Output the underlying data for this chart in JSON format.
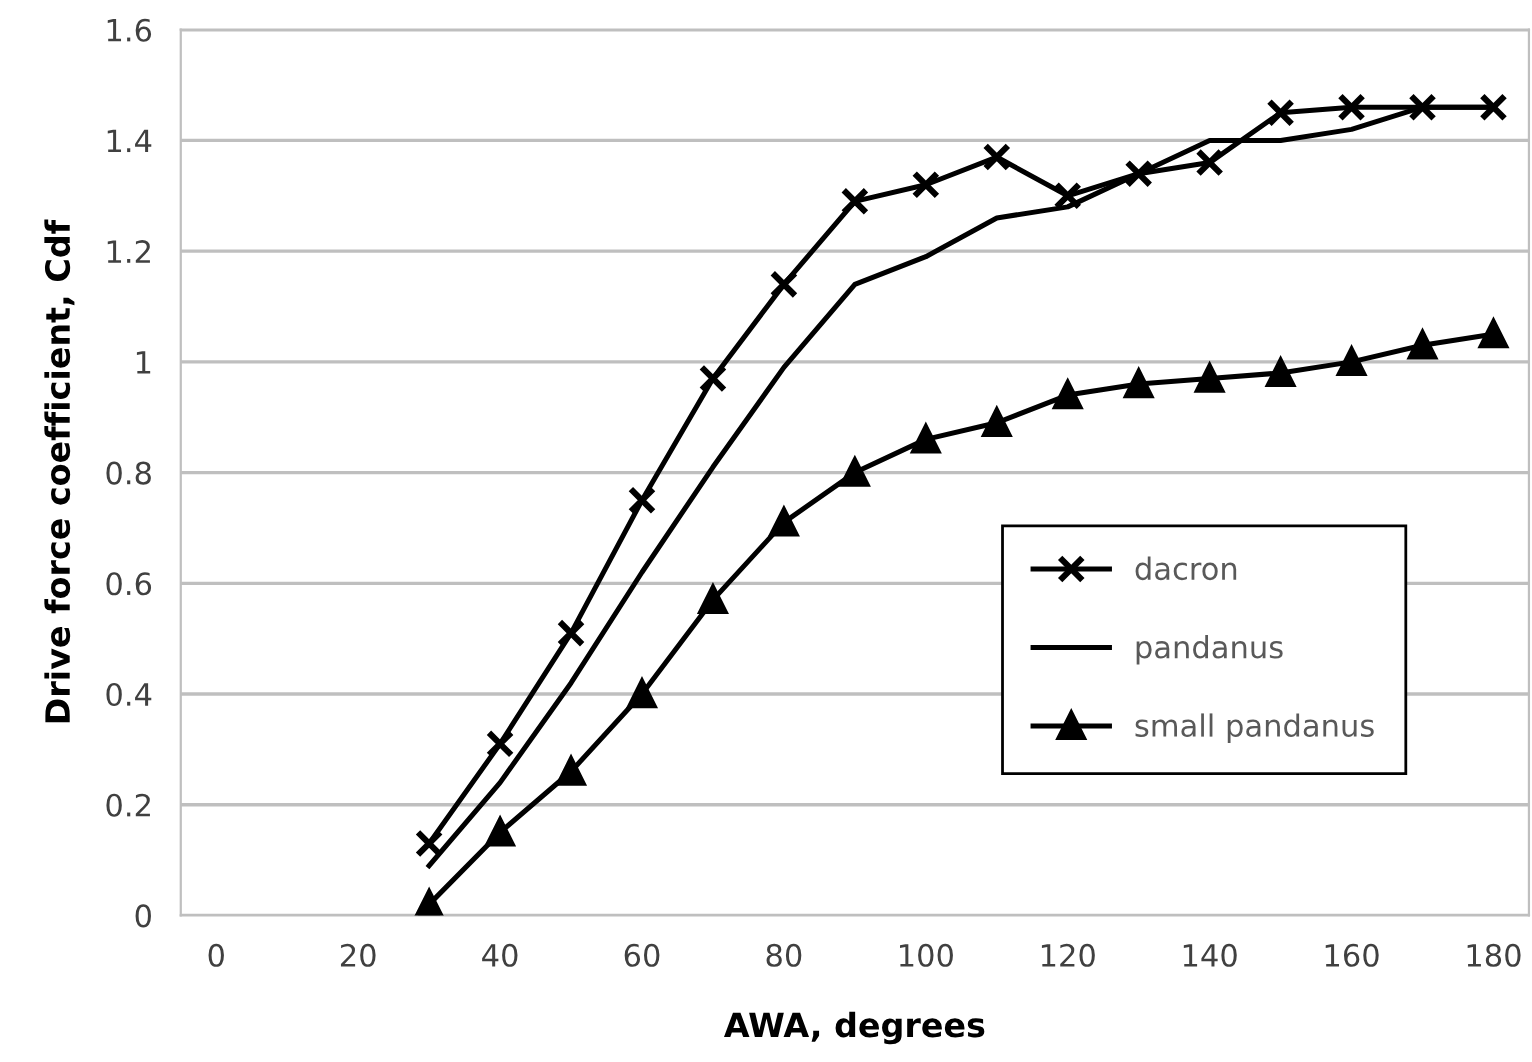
{
  "chart_data": {
    "type": "line",
    "xlabel": "AWA, degrees",
    "ylabel": "Drive force coefficient, Cdf",
    "x": [
      30,
      40,
      50,
      60,
      70,
      80,
      90,
      100,
      110,
      120,
      130,
      140,
      150,
      160,
      170,
      180
    ],
    "series": [
      {
        "name": "dacron",
        "color": "#000000",
        "marker": "cross",
        "values": [
          0.13,
          0.31,
          0.51,
          0.75,
          0.97,
          1.14,
          1.29,
          1.32,
          1.37,
          1.3,
          1.34,
          1.36,
          1.45,
          1.46,
          1.46,
          1.46
        ]
      },
      {
        "name": "pandanus",
        "color": "#000000",
        "marker": "none",
        "values": [
          0.09,
          0.24,
          0.42,
          0.62,
          0.81,
          0.99,
          1.14,
          1.19,
          1.26,
          1.28,
          1.34,
          1.4,
          1.4,
          1.42,
          1.46,
          1.46
        ]
      },
      {
        "name": "small pandanus",
        "color": "#000000",
        "marker": "triangle",
        "values": [
          0.02,
          0.15,
          0.26,
          0.4,
          0.57,
          0.71,
          0.8,
          0.86,
          0.89,
          0.94,
          0.96,
          0.97,
          0.98,
          1.0,
          1.03,
          1.05
        ]
      }
    ],
    "xlim": [
      -5,
      185
    ],
    "xticks": [
      0,
      20,
      40,
      60,
      80,
      100,
      120,
      140,
      160,
      180
    ],
    "ylim": [
      0,
      1.6
    ],
    "yticks": [
      0,
      0.2,
      0.4,
      0.6,
      0.8,
      1,
      1.2,
      1.4,
      1.6
    ],
    "grid": "y",
    "legend": "right",
    "line_style": "solid"
  }
}
